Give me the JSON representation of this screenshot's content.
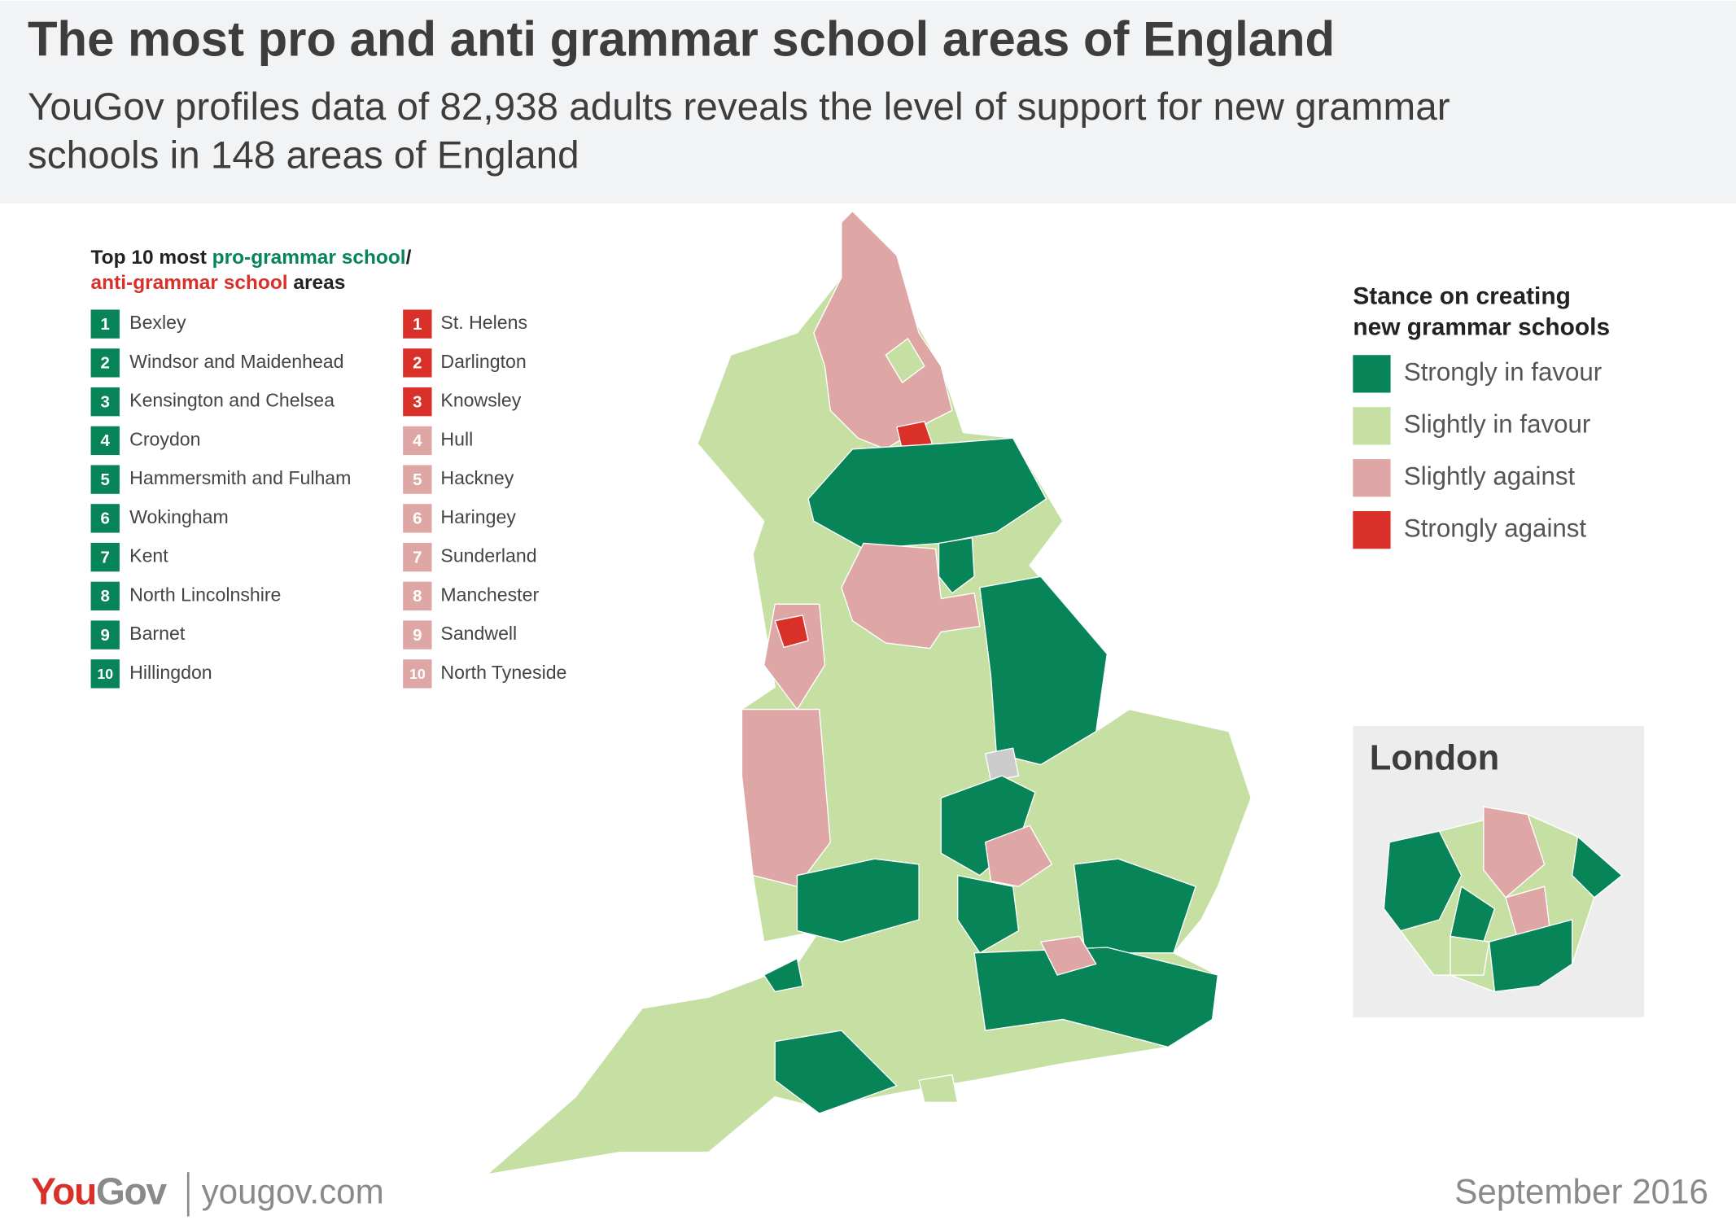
{
  "header": {
    "title": "The most pro and anti grammar school areas of England",
    "subtitle": [
      "YouGov profiles data of 82,938 adults reveals the level of support for new grammar",
      "schools in 148 areas of England"
    ]
  },
  "lists": {
    "heading": {
      "pre": "Top 10 most ",
      "pro": "pro-grammar school",
      "slash": "/",
      "anti": "anti-grammar school",
      "post": " areas",
      "pro_color": "#078558",
      "anti_color": "#d9302a"
    },
    "pro": [
      {
        "rank": 1,
        "name": "Bexley",
        "color": "#078558"
      },
      {
        "rank": 2,
        "name": "Windsor and Maidenhead",
        "color": "#078558"
      },
      {
        "rank": 3,
        "name": "Kensington and Chelsea",
        "color": "#078558"
      },
      {
        "rank": 4,
        "name": "Croydon",
        "color": "#078558"
      },
      {
        "rank": 5,
        "name": "Hammersmith and Fulham",
        "color": "#078558"
      },
      {
        "rank": 6,
        "name": "Wokingham",
        "color": "#078558"
      },
      {
        "rank": 7,
        "name": "Kent",
        "color": "#078558"
      },
      {
        "rank": 8,
        "name": "North Lincolnshire",
        "color": "#078558"
      },
      {
        "rank": 9,
        "name": "Barnet",
        "color": "#078558"
      },
      {
        "rank": 10,
        "name": "Hillingdon",
        "color": "#078558"
      }
    ],
    "anti": [
      {
        "rank": 1,
        "name": "St. Helens",
        "color": "#d9302a"
      },
      {
        "rank": 2,
        "name": "Darlington",
        "color": "#d9302a"
      },
      {
        "rank": 3,
        "name": "Knowsley",
        "color": "#d9302a"
      },
      {
        "rank": 4,
        "name": "Hull",
        "color": "#dfa6a6"
      },
      {
        "rank": 5,
        "name": "Hackney",
        "color": "#dfa6a6"
      },
      {
        "rank": 6,
        "name": "Haringey",
        "color": "#dfa6a6"
      },
      {
        "rank": 7,
        "name": "Sunderland",
        "color": "#dfa6a6"
      },
      {
        "rank": 8,
        "name": "Manchester",
        "color": "#dfa6a6"
      },
      {
        "rank": 9,
        "name": "Sandwell",
        "color": "#dfa6a6"
      },
      {
        "rank": 10,
        "name": "North Tyneside",
        "color": "#dfa6a6"
      }
    ]
  },
  "legend": {
    "title": [
      "Stance on creating",
      "new grammar schools"
    ],
    "items": [
      {
        "label": "Strongly in favour",
        "color": "#078558"
      },
      {
        "label": "Slightly in favour",
        "color": "#c6e0a4"
      },
      {
        "label": "Slightly against",
        "color": "#dfa6a6"
      },
      {
        "label": "Strongly against",
        "color": "#d9302a"
      }
    ]
  },
  "inset": {
    "title": "London"
  },
  "footer": {
    "brand_you": "You",
    "brand_gov": "Gov",
    "url": "yougov.com",
    "date": "September 2016"
  }
}
